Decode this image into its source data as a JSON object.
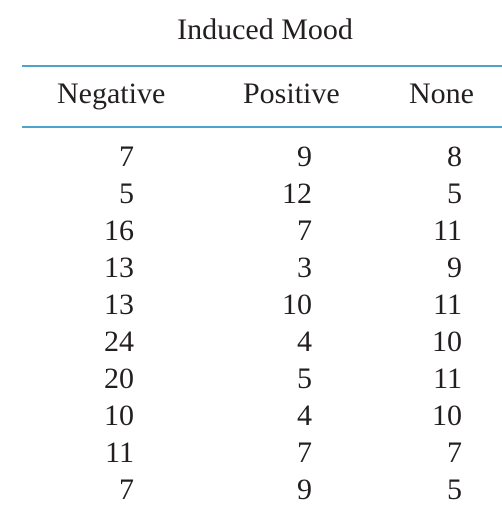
{
  "table": {
    "title": "Induced Mood",
    "columns": [
      "Negative",
      "Positive",
      "None"
    ],
    "rows": [
      [
        "7",
        "9",
        "8"
      ],
      [
        "5",
        "12",
        "5"
      ],
      [
        "16",
        "7",
        "11"
      ],
      [
        "13",
        "3",
        "9"
      ],
      [
        "13",
        "10",
        "11"
      ],
      [
        "24",
        "4",
        "10"
      ],
      [
        "20",
        "5",
        "11"
      ],
      [
        "10",
        "4",
        "10"
      ],
      [
        "11",
        "7",
        "7"
      ],
      [
        "7",
        "9",
        "5"
      ]
    ],
    "rule_color": "#4da3c9",
    "text_color": "#231f20"
  }
}
